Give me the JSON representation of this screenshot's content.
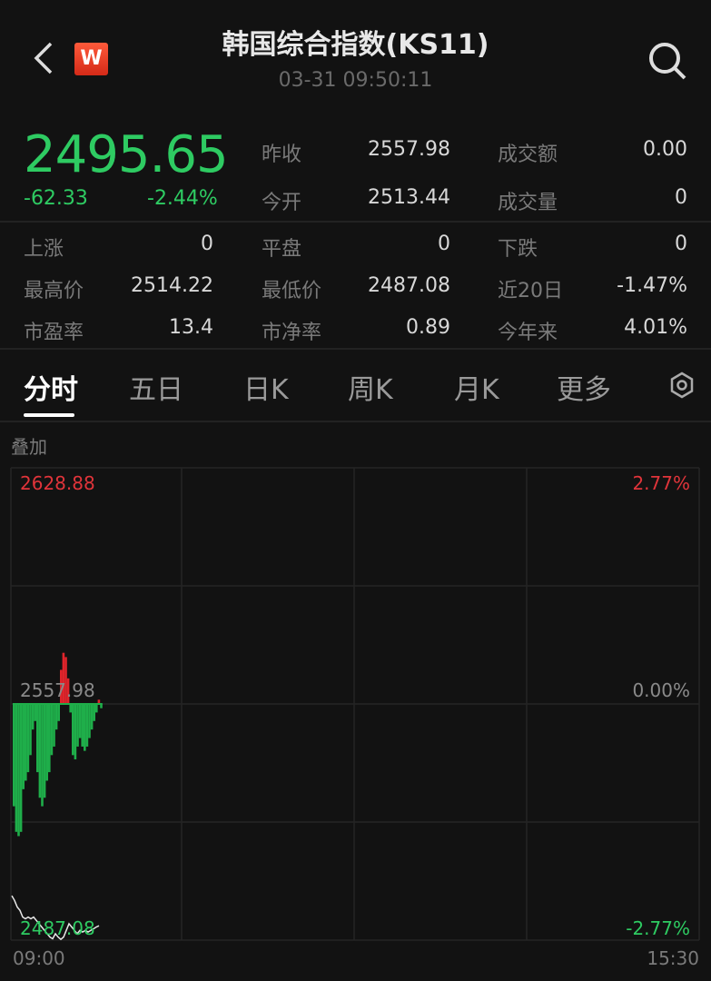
{
  "header": {
    "title": "韩国综合指数(KS11)",
    "time": "03-31 09:50:11",
    "logo": "W",
    "icons": [
      "back-chevron-icon",
      "search-icon"
    ]
  },
  "quote": {
    "price": "2495.65",
    "change": "-62.33",
    "change_pct": "-2.44%",
    "color": "#2ecb62"
  },
  "stats": [
    [
      {
        "label": "昨收",
        "value": "2557.98"
      },
      {
        "label": "成交额",
        "value": "0.00"
      }
    ],
    [
      {
        "label": "今开",
        "value": "2513.44"
      },
      {
        "label": "成交量",
        "value": "0"
      }
    ]
  ],
  "stats2": [
    [
      {
        "label": "上涨",
        "value": "0"
      },
      {
        "label": "平盘",
        "value": "0"
      },
      {
        "label": "下跌",
        "value": "0"
      }
    ],
    [
      {
        "label": "最高价",
        "value": "2514.22"
      },
      {
        "label": "最低价",
        "value": "2487.08"
      },
      {
        "label": "近20日",
        "value": "-1.47%"
      }
    ],
    [
      {
        "label": "市盈率",
        "value": "13.4"
      },
      {
        "label": "市净率",
        "value": "0.89"
      },
      {
        "label": "今年来",
        "value": "4.01%"
      }
    ]
  ],
  "tabs": [
    {
      "label": "分时",
      "active": true
    },
    {
      "label": "五日"
    },
    {
      "label": "日K"
    },
    {
      "label": "周K"
    },
    {
      "label": "月K"
    },
    {
      "label": "更多"
    }
  ],
  "overlay_label": "叠加",
  "chart_data": {
    "type": "line",
    "y_left_ticks": [
      "2628.88",
      "2557.98",
      "2487.08"
    ],
    "y_right_ticks": [
      "2.77%",
      "0.00%",
      "-2.77%"
    ],
    "x_ticks": [
      "09:00",
      "15:30"
    ],
    "ylim": [
      2487.08,
      2628.88
    ],
    "pct_lim": [
      -2.77,
      2.77
    ],
    "grid": true,
    "colors": {
      "up": "#e0242b",
      "down": "#1fae4a",
      "line": "#e8e8e8",
      "up_text": "#e0343a",
      "down_text": "#2ecb62"
    },
    "price": [
      2500.4,
      2499,
      2497,
      2496,
      2494,
      2493.5,
      2494,
      2493.5,
      2494,
      2493,
      2492,
      2491,
      2490,
      2489,
      2488,
      2487.5,
      2489,
      2488,
      2487.3,
      2488,
      2490,
      2492,
      2491,
      2490,
      2489,
      2490,
      2489.5,
      2490,
      2489.5,
      2490,
      2490.5,
      2491,
      2491.4
    ],
    "bars": [
      -1.2,
      -1.5,
      -1.55,
      -1.5,
      -1.0,
      -0.9,
      -0.8,
      -0.6,
      -0.3,
      -0.2,
      -0.8,
      -1.1,
      -1.2,
      -1.1,
      -0.9,
      -0.8,
      -0.6,
      -0.5,
      -0.3,
      -0.2,
      0.4,
      0.6,
      0.55,
      0.3,
      -0.1,
      -0.6,
      -0.65,
      -0.5,
      -0.4,
      -0.5,
      -0.55,
      -0.5,
      -0.4,
      -0.3,
      -0.2,
      -0.1,
      0.05,
      -0.05
    ]
  }
}
